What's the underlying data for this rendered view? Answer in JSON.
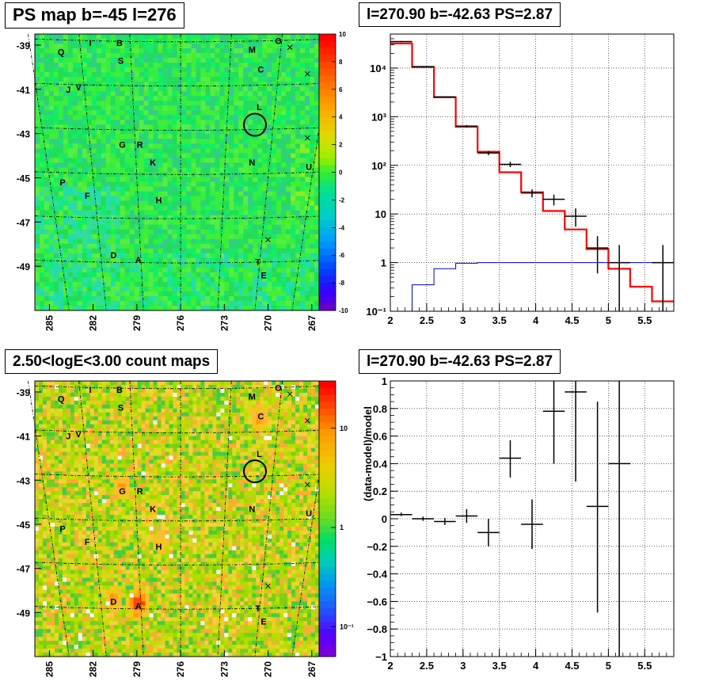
{
  "panels": {
    "ps_map": {
      "title": "PS map b=-45 l=276",
      "y_ticks": [
        "-39",
        "-41",
        "-43",
        "-45",
        "-47",
        "-49"
      ],
      "x_ticks": [
        "285",
        "282",
        "279",
        "276",
        "273",
        "270",
        "267"
      ],
      "colorbar_ticks": [
        "10",
        "8",
        "6",
        "4",
        "2",
        "0",
        "-2",
        "-4",
        "-6",
        "-8",
        "-10"
      ]
    },
    "ps_spectrum": {
      "title": "l=270.90 b=-42.63 PS=2.87"
    },
    "count_map": {
      "title": "2.50<logE<3.00 count maps",
      "y_ticks": [
        "-39",
        "-41",
        "-43",
        "-45",
        "-47",
        "-49"
      ],
      "x_ticks": [
        "285",
        "282",
        "279",
        "276",
        "273",
        "270",
        "267"
      ],
      "colorbar_ticks": [
        "10",
        "1",
        "10⁻¹"
      ]
    },
    "residual": {
      "title": "l=270.90 b=-42.63 PS=2.87"
    }
  },
  "map_labels": [
    {
      "t": "Q",
      "lon": 284.2,
      "lat": -39.3
    },
    {
      "t": "I",
      "lon": 282.2,
      "lat": -38.9
    },
    {
      "t": "B",
      "lon": 280.2,
      "lat": -38.9
    },
    {
      "t": "S",
      "lon": 280.1,
      "lat": -39.7
    },
    {
      "t": "M",
      "lon": 271.1,
      "lat": -39.2
    },
    {
      "t": "O",
      "lon": 269.3,
      "lat": -38.8
    },
    {
      "t": "C",
      "lon": 270.5,
      "lat": -40.1
    },
    {
      "t": "J",
      "lon": 283.7,
      "lat": -41.0
    },
    {
      "t": "V",
      "lon": 283.0,
      "lat": -40.9
    },
    {
      "t": "L",
      "lon": 270.6,
      "lat": -41.8
    },
    {
      "t": "G",
      "lon": 280.0,
      "lat": -43.5
    },
    {
      "t": "R",
      "lon": 278.8,
      "lat": -43.5
    },
    {
      "t": "K",
      "lon": 277.9,
      "lat": -44.3
    },
    {
      "t": "N",
      "lon": 271.1,
      "lat": -44.3
    },
    {
      "t": "U",
      "lon": 267.2,
      "lat": -44.5
    },
    {
      "t": "P",
      "lon": 284.1,
      "lat": -45.2
    },
    {
      "t": "F",
      "lon": 282.4,
      "lat": -45.8
    },
    {
      "t": "H",
      "lon": 277.5,
      "lat": -46.0
    },
    {
      "t": "D",
      "lon": 280.6,
      "lat": -48.5
    },
    {
      "t": "A",
      "lon": 278.9,
      "lat": -48.7
    },
    {
      "t": "T",
      "lon": 270.7,
      "lat": -48.8
    },
    {
      "t": "E",
      "lon": 270.3,
      "lat": -49.4
    }
  ],
  "map_markers": {
    "circle": {
      "lon": 270.9,
      "lat": -42.6
    },
    "crosses": [
      {
        "lon": 268.5,
        "lat": -39.1
      },
      {
        "lon": 267.3,
        "lat": -40.3
      },
      {
        "lon": 267.3,
        "lat": -43.2
      },
      {
        "lon": 270.0,
        "lat": -47.8
      }
    ]
  },
  "chart_data": [
    {
      "type": "heatmap",
      "title": "PS map b=-45 l=276",
      "xlabel": "",
      "ylabel": "",
      "xlim": [
        286,
        266.5
      ],
      "ylim": [
        -51,
        -38.5
      ],
      "colorbar": {
        "range": [
          -10,
          10
        ],
        "ticks": [
          10,
          8,
          6,
          4,
          2,
          0,
          -2,
          -4,
          -6,
          -8,
          -10
        ]
      },
      "colors": [
        "#6600cc",
        "#3300ff",
        "#0044ff",
        "#0099ff",
        "#00cccc",
        "#00dd99",
        "#33ee33",
        "#99ee00",
        "#dddd00",
        "#ffaa00",
        "#ff6600",
        "#ff0000"
      ]
    },
    {
      "type": "line",
      "title": "l=270.90 b=-42.63 PS=2.87",
      "xlabel": "",
      "ylabel": "",
      "xlim": [
        2,
        5.9
      ],
      "ylim": [
        0.1,
        50000
      ],
      "ylog": true,
      "x_ticks": [
        2,
        2.5,
        3,
        3.5,
        4,
        4.5,
        5,
        5.5
      ],
      "y_ticks": [
        "10⁻¹",
        "1",
        "10",
        "10²",
        "10³",
        "10⁴"
      ],
      "y_tick_values": [
        0.1,
        1,
        10,
        100,
        1000,
        10000
      ],
      "grid": true,
      "series": [
        {
          "color": "#ff0000",
          "kind": "step",
          "edges": [
            2,
            2.3,
            2.6,
            2.9,
            3.2,
            3.5,
            3.8,
            4.1,
            4.4,
            4.7,
            5.0,
            5.3,
            5.6,
            5.9
          ],
          "values": [
            32000,
            10500,
            2500,
            620,
            190,
            72,
            28,
            11.5,
            4.8,
            1.9,
            0.75,
            0.32,
            0.16
          ]
        },
        {
          "color": "#0000cc",
          "kind": "step",
          "edges": [
            2,
            2.3,
            2.6,
            2.9,
            3.2,
            3.5,
            3.8,
            4.1,
            4.4,
            4.7,
            5.0,
            5.3,
            5.6,
            5.9
          ],
          "values": [
            0.1,
            0.35,
            0.75,
            0.97,
            1.0,
            1.0,
            1.0,
            1.0,
            1.0,
            1.0,
            1.0,
            1.0,
            1.0
          ]
        },
        {
          "color": "#000000",
          "kind": "errorbars",
          "points": [
            {
              "x": 2.15,
              "y": 35000,
              "xerr": 0.15,
              "ylo": 34000,
              "yhi": 36000
            },
            {
              "x": 2.45,
              "y": 10700,
              "xerr": 0.15,
              "ylo": 10400,
              "yhi": 11000
            },
            {
              "x": 2.75,
              "y": 2550,
              "xerr": 0.15,
              "ylo": 2480,
              "yhi": 2620
            },
            {
              "x": 3.05,
              "y": 640,
              "xerr": 0.15,
              "ylo": 605,
              "yhi": 675
            },
            {
              "x": 3.35,
              "y": 180,
              "xerr": 0.15,
              "ylo": 162,
              "yhi": 198
            },
            {
              "x": 3.65,
              "y": 105,
              "xerr": 0.15,
              "ylo": 92,
              "yhi": 118
            },
            {
              "x": 3.95,
              "y": 27,
              "xerr": 0.15,
              "ylo": 22,
              "yhi": 32
            },
            {
              "x": 4.25,
              "y": 20,
              "xerr": 0.15,
              "ylo": 15,
              "yhi": 25
            },
            {
              "x": 4.55,
              "y": 9,
              "xerr": 0.15,
              "ylo": 5.5,
              "yhi": 13
            },
            {
              "x": 4.85,
              "y": 2,
              "xerr": 0.15,
              "ylo": 0.6,
              "yhi": 3.5
            },
            {
              "x": 5.15,
              "y": 1,
              "xerr": 0.15,
              "ylo": 0.1,
              "yhi": 2.3
            },
            {
              "x": 5.75,
              "y": 1,
              "xerr": 0.15,
              "ylo": 0.1,
              "yhi": 2.3
            }
          ]
        }
      ]
    },
    {
      "type": "heatmap",
      "title": "2.50<logE<3.00 count maps",
      "xlabel": "",
      "ylabel": "",
      "xlim": [
        286,
        266.5
      ],
      "ylim": [
        -51,
        -38.5
      ],
      "colorbar": {
        "scale": "log",
        "range": [
          0.05,
          30
        ],
        "ticks": [
          "10",
          "1",
          "10⁻¹"
        ],
        "tick_values": [
          10,
          1,
          0.1
        ]
      },
      "hotspots": [
        {
          "lon": 278.9,
          "lat": -48.6,
          "strength": 1.0
        },
        {
          "lon": 280.6,
          "lat": -48.4,
          "strength": 0.5
        },
        {
          "lon": 270.5,
          "lat": -40.2,
          "strength": 0.55
        },
        {
          "lon": 280.0,
          "lat": -43.3,
          "strength": 0.45
        },
        {
          "lon": 277.4,
          "lat": -45.8,
          "strength": 0.4
        },
        {
          "lon": 277.9,
          "lat": -44.2,
          "strength": 0.25
        }
      ]
    },
    {
      "type": "scatter",
      "title": "l=270.90 b=-42.63 PS=2.87",
      "xlabel": "",
      "ylabel": "(data-model)/model",
      "xlim": [
        2,
        5.9
      ],
      "ylim": [
        -1,
        1
      ],
      "x_ticks": [
        2,
        2.5,
        3,
        3.5,
        4,
        4.5,
        5,
        5.5
      ],
      "y_ticks": [
        -1,
        -0.8,
        -0.6,
        -0.4,
        -0.2,
        0,
        0.2,
        0.4,
        0.6,
        0.8,
        1
      ],
      "grid": true,
      "points": [
        {
          "x": 2.15,
          "y": 0.03,
          "xerr": 0.15,
          "ylo": 0.02,
          "yhi": 0.045
        },
        {
          "x": 2.45,
          "y": 0.0,
          "xerr": 0.15,
          "ylo": -0.015,
          "yhi": 0.015
        },
        {
          "x": 2.75,
          "y": -0.02,
          "xerr": 0.15,
          "ylo": -0.045,
          "yhi": 0.005
        },
        {
          "x": 3.05,
          "y": 0.02,
          "xerr": 0.15,
          "ylo": -0.03,
          "yhi": 0.07
        },
        {
          "x": 3.35,
          "y": -0.1,
          "xerr": 0.15,
          "ylo": -0.2,
          "yhi": 0.0
        },
        {
          "x": 3.65,
          "y": 0.44,
          "xerr": 0.15,
          "ylo": 0.3,
          "yhi": 0.57
        },
        {
          "x": 3.95,
          "y": -0.04,
          "xerr": 0.15,
          "ylo": -0.22,
          "yhi": 0.14
        },
        {
          "x": 4.25,
          "y": 0.78,
          "xerr": 0.15,
          "ylo": 0.4,
          "yhi": 1.0
        },
        {
          "x": 4.55,
          "y": 0.92,
          "xerr": 0.15,
          "ylo": 0.27,
          "yhi": 1.0
        },
        {
          "x": 4.85,
          "y": 0.09,
          "xerr": 0.15,
          "ylo": -0.68,
          "yhi": 0.85
        },
        {
          "x": 5.15,
          "y": 0.4,
          "xerr": 0.15,
          "ylo": -1.0,
          "yhi": 1.0
        }
      ]
    }
  ]
}
